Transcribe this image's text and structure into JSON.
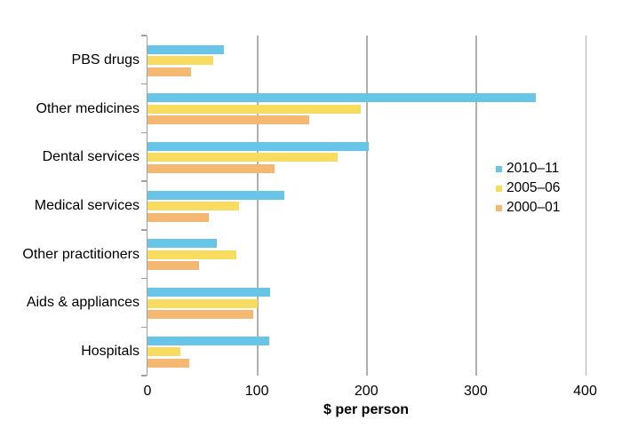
{
  "chart_data": {
    "type": "bar",
    "orientation": "horizontal",
    "title": "",
    "xlabel": "$ per person",
    "ylabel": "",
    "xlim": [
      0,
      400
    ],
    "xticks": [
      0,
      100,
      200,
      300,
      400
    ],
    "grid": true,
    "legend_position": "inside-right-middle",
    "categories": [
      "PBS drugs",
      "Other medicines",
      "Dental services",
      "Medical services",
      "Other practitioners",
      "Aids & appliances",
      "Hospitals"
    ],
    "series": [
      {
        "name": "2010–11",
        "color": "#68C5E8",
        "values": [
          70,
          355,
          202,
          125,
          63,
          112,
          111
        ]
      },
      {
        "name": "2005–06",
        "color": "#F8DC60",
        "values": [
          60,
          195,
          174,
          84,
          81,
          101,
          30
        ]
      },
      {
        "name": "2000–01",
        "color": "#F5B873",
        "values": [
          40,
          148,
          116,
          56,
          47,
          97,
          38
        ]
      }
    ]
  },
  "colors": {
    "background": "#ffffff",
    "grid": "#b0b0b0",
    "axis": "#a0a0a0",
    "text": "#000000"
  }
}
